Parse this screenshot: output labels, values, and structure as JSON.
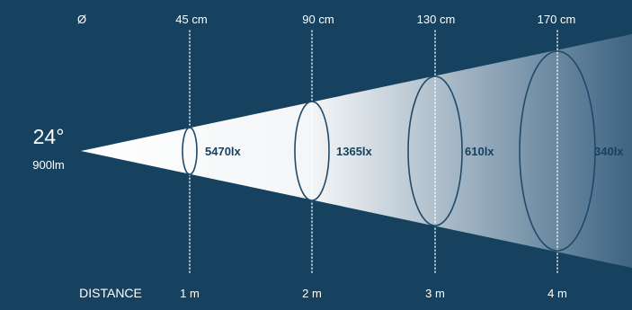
{
  "colors": {
    "background": "#16425f",
    "beam_light": "#ffffff",
    "beam_dark": "#3d6483",
    "ring": "#1f4a6c",
    "text_light": "#ffffff",
    "text_dark": "#16425f"
  },
  "diameter_symbol": "Ø",
  "beam": {
    "angle_label": "24°",
    "lumen_label": "900lm"
  },
  "distance_label": "DISTANCE",
  "stations": [
    {
      "diameter_label": "45 cm",
      "illuminance_label": "5470lx",
      "distance_label": "1 m"
    },
    {
      "diameter_label": "90  cm",
      "illuminance_label": "1365lx",
      "distance_label": "2 m"
    },
    {
      "diameter_label": "130 cm",
      "illuminance_label": "610lx",
      "distance_label": "3 m"
    },
    {
      "diameter_label": "170 cm",
      "illuminance_label": "340lx",
      "distance_label": "4 m"
    }
  ]
}
